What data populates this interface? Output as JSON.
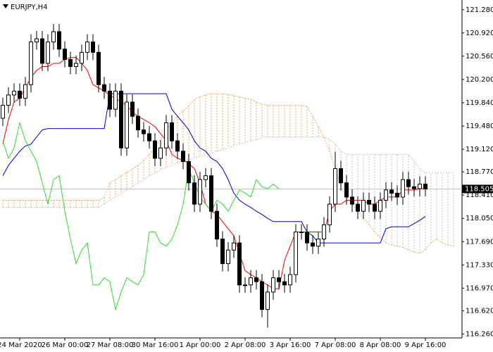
{
  "chart_data": {
    "type": "candlestick",
    "title": "EURJPY,H4",
    "categories": [
      null,
      null,
      null,
      "24 Mar 2020",
      null,
      null,
      null,
      null,
      null,
      null,
      null,
      "26 Mar 00:00",
      null,
      null,
      null,
      null,
      null,
      null,
      null,
      "27 Mar 08:00",
      null,
      null,
      null,
      null,
      null,
      null,
      null,
      "30 Mar 16:00",
      null,
      null,
      null,
      null,
      null,
      null,
      null,
      "1 Apr 00:00",
      null,
      null,
      null,
      null,
      null,
      null,
      null,
      "2 Apr 08:00",
      null,
      null,
      null,
      null,
      null,
      null,
      null,
      "3 Apr 16:00",
      null,
      null,
      null,
      null,
      null,
      null,
      null,
      "7 Apr 08:00",
      null,
      null,
      null,
      null,
      null,
      null,
      null,
      "8 Apr 08:00",
      null,
      null,
      null,
      null,
      null,
      null,
      null,
      "9 Apr 16:00",
      null,
      null,
      null,
      null,
      null
    ],
    "open": [
      119.6,
      119.8,
      119.96,
      120.02,
      119.91,
      120.12,
      120.78,
      120.83,
      120.45,
      120.78,
      120.94,
      120.67,
      120.51,
      120.4,
      120.45,
      120.62,
      120.78,
      120.62,
      120.12,
      120.02,
      119.74,
      120.02,
      119.14,
      119.85,
      119.63,
      119.42,
      119.36,
      119.25,
      118.98,
      119.14,
      119.53,
      119.25,
      119.09,
      118.93,
      118.6,
      118.27,
      118.65,
      118.71,
      118.16,
      117.73,
      117.35,
      117.56,
      117.67,
      117.02,
      117.02,
      117.13,
      117.07,
      116.64,
      116.91,
      117.13,
      117.07,
      117.02,
      117.18,
      117.84,
      117.84,
      117.67,
      117.62,
      117.73,
      117.95,
      118.27,
      118.82,
      118.6,
      118.38,
      118.27,
      118.16,
      118.33,
      118.27,
      118.16,
      118.33,
      118.49,
      118.44,
      118.38,
      118.65,
      118.54,
      118.51,
      118.58,
      null,
      null,
      null,
      null,
      null
    ],
    "high": [
      119.92,
      120.08,
      120.14,
      120.14,
      120.24,
      120.9,
      120.95,
      120.95,
      120.9,
      121.06,
      121.06,
      120.79,
      120.63,
      120.57,
      120.74,
      120.9,
      120.9,
      120.74,
      120.24,
      120.14,
      120.14,
      120.14,
      119.97,
      119.97,
      119.75,
      119.54,
      119.48,
      119.37,
      119.26,
      119.65,
      119.65,
      119.37,
      119.21,
      119.05,
      118.72,
      118.77,
      118.83,
      118.83,
      118.28,
      117.85,
      117.68,
      117.79,
      117.79,
      117.14,
      117.25,
      117.25,
      117.19,
      117.03,
      117.25,
      117.25,
      117.19,
      117.3,
      117.96,
      117.96,
      117.96,
      117.79,
      117.85,
      118.07,
      118.39,
      119.08,
      118.94,
      118.72,
      118.5,
      118.39,
      118.45,
      118.45,
      118.39,
      118.45,
      118.61,
      118.61,
      118.56,
      118.77,
      118.77,
      118.66,
      118.7,
      118.7,
      null,
      null,
      null,
      null,
      null
    ],
    "low": [
      119.48,
      119.68,
      119.84,
      119.79,
      119.79,
      120.0,
      120.66,
      120.33,
      120.33,
      120.66,
      120.55,
      120.39,
      120.28,
      120.28,
      120.33,
      120.5,
      120.5,
      120.0,
      119.9,
      119.62,
      119.62,
      119.02,
      119.02,
      119.51,
      119.3,
      119.24,
      119.13,
      118.86,
      118.86,
      119.02,
      119.13,
      118.97,
      118.81,
      118.48,
      118.15,
      118.15,
      118.53,
      118.04,
      117.61,
      117.23,
      117.23,
      117.44,
      116.9,
      116.9,
      116.9,
      116.95,
      116.52,
      116.36,
      116.79,
      116.95,
      116.9,
      116.9,
      117.06,
      117.72,
      117.55,
      117.5,
      117.5,
      117.61,
      117.83,
      118.15,
      118.48,
      118.26,
      118.15,
      118.04,
      118.04,
      118.15,
      118.04,
      118.04,
      118.21,
      118.32,
      118.26,
      118.26,
      118.42,
      118.39,
      118.39,
      118.39,
      null,
      null,
      null,
      null,
      null
    ],
    "close": [
      119.8,
      119.96,
      120.02,
      119.91,
      120.12,
      120.78,
      120.83,
      120.45,
      120.78,
      120.94,
      120.67,
      120.51,
      120.4,
      120.45,
      120.62,
      120.78,
      120.62,
      120.12,
      120.02,
      119.74,
      120.02,
      119.14,
      119.85,
      119.63,
      119.42,
      119.36,
      119.25,
      118.98,
      119.14,
      119.53,
      119.25,
      119.09,
      118.93,
      118.6,
      118.27,
      118.65,
      118.71,
      118.16,
      117.73,
      117.35,
      117.56,
      117.67,
      117.02,
      117.02,
      117.13,
      117.07,
      116.64,
      116.91,
      117.13,
      117.07,
      117.02,
      117.18,
      117.84,
      117.84,
      117.67,
      117.62,
      117.73,
      117.95,
      118.27,
      118.82,
      118.6,
      118.38,
      118.27,
      118.16,
      118.33,
      118.27,
      118.16,
      118.33,
      118.49,
      118.44,
      118.38,
      118.65,
      118.54,
      118.51,
      118.58,
      118.505,
      null,
      null,
      null,
      null,
      null
    ],
    "up_color": "#ffffff",
    "down_color": "#000000",
    "series": [
      {
        "color": "#ff0000",
        "values": [
          119.2,
          119.58,
          119.85,
          119.91,
          120.07,
          120.23,
          120.34,
          120.4,
          120.4,
          120.45,
          120.45,
          120.51,
          120.54,
          120.54,
          120.45,
          120.34,
          120.12,
          120.07,
          120.02,
          119.96,
          119.91,
          119.85,
          119.8,
          119.69,
          119.63,
          119.58,
          119.53,
          119.47,
          119.36,
          119.25,
          119.04,
          118.98,
          118.95,
          118.9,
          118.82,
          118.6,
          118.27,
          118.16,
          118.11,
          118.0,
          117.89,
          117.78,
          117.51,
          117.24,
          117.18,
          117.13,
          117.07,
          117.02,
          116.96,
          116.96,
          117.4,
          117.62,
          117.84,
          117.84,
          117.84,
          117.84,
          117.84,
          117.84,
          118.16,
          118.27,
          118.27,
          118.33,
          118.33,
          118.33,
          118.33,
          118.27,
          118.27,
          118.33,
          118.38,
          118.38,
          118.38,
          118.49,
          118.49,
          118.49,
          118.51,
          118.51,
          null,
          null,
          null,
          null,
          null
        ]
      },
      {
        "color": "#0000c8",
        "values": [
          118.71,
          118.87,
          118.98,
          119.09,
          119.17,
          119.2,
          119.31,
          119.42,
          119.44,
          119.44,
          119.44,
          119.44,
          119.44,
          119.44,
          119.44,
          119.44,
          119.44,
          119.44,
          119.44,
          119.98,
          119.98,
          119.98,
          119.98,
          119.98,
          119.98,
          119.98,
          119.98,
          119.98,
          119.98,
          119.98,
          119.74,
          119.63,
          119.53,
          119.42,
          119.25,
          119.14,
          119.09,
          118.98,
          118.93,
          118.82,
          118.65,
          118.44,
          118.33,
          118.27,
          118.22,
          118.16,
          118.11,
          118.05,
          118.0,
          118.0,
          118.0,
          118.0,
          118.0,
          118.0,
          117.84,
          117.78,
          117.67,
          117.67,
          117.67,
          117.67,
          117.67,
          117.67,
          117.67,
          117.67,
          117.67,
          117.67,
          117.67,
          117.67,
          117.89,
          117.92,
          117.92,
          117.92,
          117.92,
          117.97,
          118.02,
          118.08,
          null,
          null,
          null,
          null,
          null
        ]
      },
      {
        "color": "#32dc32",
        "values": [
          119.25,
          118.98,
          119.14,
          119.53,
          119.25,
          119.09,
          118.93,
          118.6,
          118.27,
          118.65,
          118.71,
          118.16,
          117.73,
          117.35,
          117.56,
          117.67,
          117.02,
          117.02,
          117.13,
          117.07,
          116.64,
          116.91,
          117.13,
          117.07,
          117.02,
          117.18,
          117.84,
          117.84,
          117.67,
          117.62,
          117.73,
          117.95,
          118.27,
          118.82,
          118.6,
          118.38,
          118.27,
          118.16,
          118.33,
          118.27,
          118.16,
          118.33,
          118.49,
          118.44,
          118.38,
          118.65,
          118.54,
          118.51,
          118.58,
          118.505,
          null,
          null,
          null,
          null,
          null,
          null,
          null,
          null,
          null,
          null,
          null,
          null,
          null,
          null,
          null,
          null,
          null,
          null,
          null,
          null,
          null,
          null,
          null,
          null,
          null,
          null,
          null,
          null,
          null,
          null,
          null
        ]
      }
    ],
    "cloud": {
      "up_color": "#f4a460",
      "down_color": "#c0c0c0",
      "span_a": [
        118.33,
        118.33,
        118.33,
        118.33,
        118.33,
        118.33,
        118.33,
        118.33,
        118.33,
        118.33,
        118.33,
        118.33,
        118.33,
        118.33,
        118.33,
        118.33,
        118.33,
        118.33,
        118.38,
        118.6,
        118.65,
        118.71,
        118.76,
        118.82,
        118.87,
        118.95,
        119.04,
        119.14,
        119.27,
        119.42,
        119.53,
        119.63,
        119.71,
        119.8,
        119.89,
        119.93,
        119.96,
        119.98,
        119.98,
        119.98,
        119.97,
        119.95,
        119.93,
        119.91,
        119.89,
        119.85,
        119.82,
        119.8,
        119.8,
        119.8,
        119.8,
        119.8,
        119.8,
        119.8,
        119.78,
        119.63,
        119.47,
        119.31,
        119.09,
        118.82,
        118.54,
        118.38,
        118.27,
        118.16,
        118.05,
        117.95,
        117.84,
        117.75,
        117.67,
        117.64,
        117.62,
        117.6,
        117.56,
        117.53,
        117.51,
        117.56,
        117.67,
        117.73,
        117.67,
        117.64,
        117.62
      ],
      "span_b": [
        118.22,
        118.22,
        118.22,
        118.22,
        118.22,
        118.22,
        118.22,
        118.22,
        118.22,
        118.22,
        118.22,
        118.22,
        118.22,
        118.22,
        118.22,
        118.22,
        118.22,
        118.22,
        118.27,
        118.33,
        118.38,
        118.44,
        118.49,
        118.54,
        118.6,
        118.65,
        118.71,
        118.75,
        118.8,
        118.84,
        118.87,
        118.9,
        118.93,
        118.95,
        118.98,
        119.01,
        119.04,
        119.06,
        119.09,
        119.11,
        119.14,
        119.17,
        119.2,
        119.22,
        119.25,
        119.27,
        119.3,
        119.31,
        119.31,
        119.31,
        119.31,
        119.31,
        119.31,
        119.31,
        119.31,
        119.31,
        119.31,
        119.31,
        119.27,
        119.2,
        119.09,
        119.04,
        119.04,
        119.04,
        119.04,
        119.04,
        119.04,
        119.04,
        119.04,
        119.04,
        119.04,
        119.04,
        119.04,
        118.93,
        118.82,
        118.76,
        118.76,
        118.76,
        118.76,
        118.76,
        118.76
      ]
    },
    "last_price": 118.505,
    "ylim": [
      116.2,
      121.43
    ],
    "yticks": [
      {
        "value": 121.28,
        "label": "121.280"
      },
      {
        "value": 120.92,
        "label": "120.920"
      },
      {
        "value": 120.56,
        "label": "120.560"
      },
      {
        "value": 120.2,
        "label": "120.200"
      },
      {
        "value": 119.84,
        "label": "119.840"
      },
      {
        "value": 119.48,
        "label": "119.480"
      },
      {
        "value": 119.12,
        "label": "119.120"
      },
      {
        "value": 118.77,
        "label": "118.770"
      },
      {
        "value": 118.41,
        "label": "118.410"
      },
      {
        "value": 118.05,
        "label": "118.050"
      },
      {
        "value": 117.69,
        "label": "117.690"
      },
      {
        "value": 117.33,
        "label": "117.330"
      },
      {
        "value": 116.97,
        "label": "116.970"
      },
      {
        "value": 116.62,
        "label": "116.620"
      },
      {
        "value": 116.26,
        "label": "116.260"
      }
    ],
    "grid": false
  }
}
